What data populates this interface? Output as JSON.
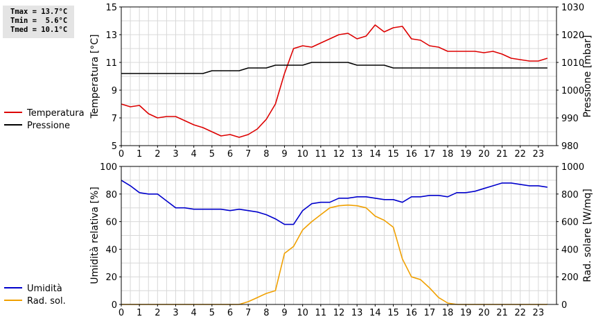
{
  "stats": {
    "tmax": "Tmax = 13.7°C",
    "tmin": "Tmin =  5.6°C",
    "tmed": "Tmed = 10.1°C"
  },
  "chart_data": [
    {
      "type": "line",
      "ylabel_left": "Temperatura [°C]",
      "ylabel_right": "Pressione [mbar]",
      "ylim_left": [
        5,
        15
      ],
      "ylim_right": [
        980,
        1030
      ],
      "yticks_left": [
        5,
        7,
        9,
        11,
        13,
        15
      ],
      "yticks_right": [
        980,
        990,
        1000,
        1010,
        1020,
        1030
      ],
      "xlim": [
        0,
        24
      ],
      "xticks": [
        0,
        1,
        2,
        3,
        4,
        5,
        6,
        7,
        8,
        9,
        10,
        11,
        12,
        13,
        14,
        15,
        16,
        17,
        18,
        19,
        20,
        21,
        22,
        23
      ],
      "grid": true,
      "series": [
        {
          "name": "Temperatura",
          "color": "#dd0000",
          "axis": "left",
          "x": [
            0,
            0.5,
            1,
            1.5,
            2,
            2.5,
            3,
            3.5,
            4,
            4.5,
            5,
            5.5,
            6,
            6.5,
            7,
            7.5,
            8,
            8.5,
            9,
            9.5,
            10,
            10.5,
            11,
            11.5,
            12,
            12.5,
            13,
            13.5,
            14,
            14.5,
            15,
            15.5,
            16,
            16.5,
            17,
            17.5,
            18,
            18.5,
            19,
            19.5,
            20,
            20.5,
            21,
            21.5,
            22,
            22.5,
            23,
            23.5
          ],
          "y": [
            8.0,
            7.8,
            7.9,
            7.3,
            7.0,
            7.1,
            7.1,
            6.8,
            6.5,
            6.3,
            6.0,
            5.7,
            5.8,
            5.6,
            5.8,
            6.2,
            6.9,
            8.0,
            10.2,
            12.0,
            12.2,
            12.1,
            12.4,
            12.7,
            13.0,
            13.1,
            12.7,
            12.9,
            13.7,
            13.2,
            13.5,
            13.6,
            12.7,
            12.6,
            12.2,
            12.1,
            11.8,
            11.8,
            11.8,
            11.8,
            11.7,
            11.8,
            11.6,
            11.3,
            11.2,
            11.1,
            11.1,
            11.3
          ]
        },
        {
          "name": "Pressione",
          "color": "#000000",
          "axis": "right",
          "x": [
            0,
            0.5,
            1,
            1.5,
            2,
            2.5,
            3,
            3.5,
            4,
            4.5,
            5,
            5.5,
            6,
            6.5,
            7,
            7.5,
            8,
            8.5,
            9,
            9.5,
            10,
            10.5,
            11,
            11.5,
            12,
            12.5,
            13,
            13.5,
            14,
            14.5,
            15,
            15.5,
            16,
            16.5,
            17,
            17.5,
            18,
            18.5,
            19,
            19.5,
            20,
            20.5,
            21,
            21.5,
            22,
            22.5,
            23,
            23.5
          ],
          "y": [
            1006,
            1006,
            1006,
            1006,
            1006,
            1006,
            1006,
            1006,
            1006,
            1006,
            1007,
            1007,
            1007,
            1007,
            1008,
            1008,
            1008,
            1009,
            1009,
            1009,
            1009,
            1010,
            1010,
            1010,
            1010,
            1010,
            1009,
            1009,
            1009,
            1009,
            1008,
            1008,
            1008,
            1008,
            1008,
            1008,
            1008,
            1008,
            1008,
            1008,
            1008,
            1008,
            1008,
            1008,
            1008,
            1008,
            1008,
            1008
          ]
        }
      ]
    },
    {
      "type": "line",
      "ylabel_left": "Umidità relativa [%]",
      "ylabel_right": "Rad. solare [W/mq]",
      "ylim_left": [
        0,
        100
      ],
      "ylim_right": [
        0,
        1000
      ],
      "yticks_left": [
        0,
        20,
        40,
        60,
        80,
        100
      ],
      "yticks_right": [
        0,
        200,
        400,
        600,
        800,
        1000
      ],
      "xlim": [
        0,
        24
      ],
      "xticks": [
        0,
        1,
        2,
        3,
        4,
        5,
        6,
        7,
        8,
        9,
        10,
        11,
        12,
        13,
        14,
        15,
        16,
        17,
        18,
        19,
        20,
        21,
        22,
        23
      ],
      "grid": true,
      "series": [
        {
          "name": "Umidità",
          "color": "#0000cc",
          "axis": "left",
          "x": [
            0,
            0.5,
            1,
            1.5,
            2,
            2.5,
            3,
            3.5,
            4,
            4.5,
            5,
            5.5,
            6,
            6.5,
            7,
            7.5,
            8,
            8.5,
            9,
            9.5,
            10,
            10.5,
            11,
            11.5,
            12,
            12.5,
            13,
            13.5,
            14,
            14.5,
            15,
            15.5,
            16,
            16.5,
            17,
            17.5,
            18,
            18.5,
            19,
            19.5,
            20,
            20.5,
            21,
            21.5,
            22,
            22.5,
            23,
            23.5
          ],
          "y": [
            90,
            86,
            81,
            80,
            80,
            75,
            70,
            70,
            69,
            69,
            69,
            69,
            68,
            69,
            68,
            67,
            65,
            62,
            58,
            58,
            68,
            73,
            74,
            74,
            77,
            77,
            78,
            78,
            77,
            76,
            76,
            74,
            78,
            78,
            79,
            79,
            78,
            81,
            81,
            82,
            84,
            86,
            88,
            88,
            87,
            86,
            86,
            85
          ]
        },
        {
          "name": "Rad. sol.",
          "color": "#f0a000",
          "axis": "right",
          "x": [
            0,
            0.5,
            1,
            1.5,
            2,
            2.5,
            3,
            3.5,
            4,
            4.5,
            5,
            5.5,
            6,
            6.5,
            7,
            7.5,
            8,
            8.5,
            9,
            9.5,
            10,
            10.5,
            11,
            11.5,
            12,
            12.5,
            13,
            13.5,
            14,
            14.5,
            15,
            15.5,
            16,
            16.5,
            17,
            17.5,
            18,
            18.5,
            19,
            19.5,
            20,
            20.5,
            21,
            21.5,
            22,
            22.5,
            23,
            23.5
          ],
          "y": [
            0,
            0,
            0,
            0,
            0,
            0,
            0,
            0,
            0,
            0,
            0,
            0,
            0,
            0,
            20,
            50,
            80,
            100,
            370,
            420,
            540,
            600,
            650,
            700,
            715,
            720,
            715,
            700,
            640,
            610,
            560,
            330,
            200,
            180,
            120,
            50,
            10,
            0,
            0,
            0,
            0,
            0,
            0,
            0,
            0,
            0,
            0,
            0
          ]
        }
      ]
    }
  ]
}
